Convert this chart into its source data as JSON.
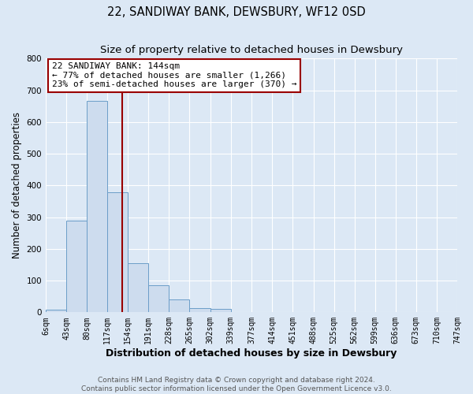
{
  "title": "22, SANDIWAY BANK, DEWSBURY, WF12 0SD",
  "subtitle": "Size of property relative to detached houses in Dewsbury",
  "xlabel": "Distribution of detached houses by size in Dewsbury",
  "ylabel": "Number of detached properties",
  "bar_edges": [
    6,
    43,
    80,
    117,
    154,
    191,
    228,
    265,
    302,
    339,
    377,
    414,
    451,
    488,
    525,
    562,
    599,
    636,
    673,
    710,
    747
  ],
  "bar_heights": [
    8,
    288,
    668,
    378,
    155,
    85,
    40,
    13,
    10,
    0,
    0,
    0,
    0,
    0,
    0,
    0,
    0,
    0,
    0,
    0
  ],
  "bar_color": "#cddcee",
  "bar_edge_color": "#6b9dc8",
  "property_line_x": 144,
  "property_line_color": "#990000",
  "annotation_title": "22 SANDIWAY BANK: 144sqm",
  "annotation_line1": "← 77% of detached houses are smaller (1,266)",
  "annotation_line2": "23% of semi-detached houses are larger (370) →",
  "annotation_box_color": "#ffffff",
  "annotation_box_edge_color": "#990000",
  "ylim": [
    0,
    800
  ],
  "xlim": [
    6,
    747
  ],
  "tick_labels": [
    "6sqm",
    "43sqm",
    "80sqm",
    "117sqm",
    "154sqm",
    "191sqm",
    "228sqm",
    "265sqm",
    "302sqm",
    "339sqm",
    "377sqm",
    "414sqm",
    "451sqm",
    "488sqm",
    "525sqm",
    "562sqm",
    "599sqm",
    "636sqm",
    "673sqm",
    "710sqm",
    "747sqm"
  ],
  "footer1": "Contains HM Land Registry data © Crown copyright and database right 2024.",
  "footer2": "Contains public sector information licensed under the Open Government Licence v3.0.",
  "background_color": "#dce8f5",
  "plot_background_color": "#dce8f5",
  "grid_color": "#ffffff",
  "title_fontsize": 10.5,
  "subtitle_fontsize": 9.5,
  "xlabel_fontsize": 9,
  "ylabel_fontsize": 8.5,
  "tick_fontsize": 7,
  "annotation_fontsize": 8,
  "footer_fontsize": 6.5
}
